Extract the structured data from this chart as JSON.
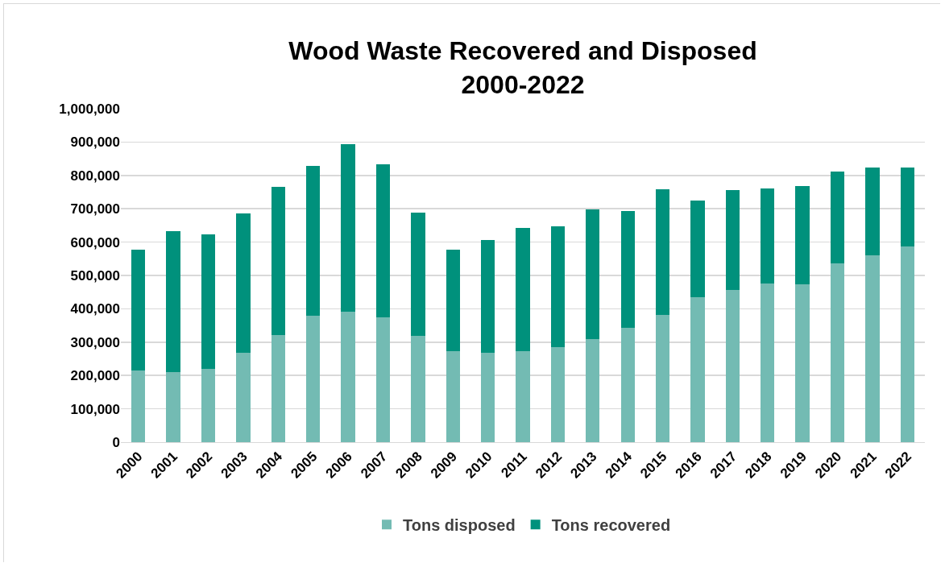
{
  "chart_data": {
    "type": "bar",
    "title": "Wood Waste Recovered and Disposed\n2000-2022",
    "categories": [
      "2000",
      "2001",
      "2002",
      "2003",
      "2004",
      "2005",
      "2006",
      "2007",
      "2008",
      "2009",
      "2010",
      "2011",
      "2012",
      "2013",
      "2014",
      "2015",
      "2016",
      "2017",
      "2018",
      "2019",
      "2020",
      "2021",
      "2022"
    ],
    "series": [
      {
        "name": "Tons disposed",
        "color": "#73bbb3",
        "values": [
          215000,
          210000,
          220000,
          268000,
          322000,
          380000,
          391000,
          375000,
          318000,
          272000,
          268000,
          274000,
          285000,
          310000,
          343000,
          382000,
          434000,
          457000,
          475000,
          473000,
          536000,
          561000,
          587000
        ]
      },
      {
        "name": "Tons recovered",
        "color": "#00917c",
        "values": [
          362000,
          424000,
          403000,
          419000,
          444000,
          448000,
          503000,
          459000,
          371000,
          305000,
          339000,
          369000,
          363000,
          388000,
          350000,
          377000,
          290000,
          298000,
          287000,
          296000,
          276000,
          263000,
          237000
        ]
      }
    ],
    "stacked": true,
    "ylim": [
      0,
      1000000
    ],
    "yticks": [
      {
        "value": 0,
        "label": "0"
      },
      {
        "value": 100000,
        "label": "100,000"
      },
      {
        "value": 200000,
        "label": "200,000"
      },
      {
        "value": 300000,
        "label": "300,000"
      },
      {
        "value": 400000,
        "label": "400,000"
      },
      {
        "value": 500000,
        "label": "500,000"
      },
      {
        "value": 600000,
        "label": "600,000"
      },
      {
        "value": 700000,
        "label": "700,000"
      },
      {
        "value": 800000,
        "label": "800,000"
      },
      {
        "value": 900000,
        "label": "900,000"
      },
      {
        "value": 1000000,
        "label": "1,000,000"
      }
    ],
    "grid": "y",
    "legend": "bottom"
  }
}
